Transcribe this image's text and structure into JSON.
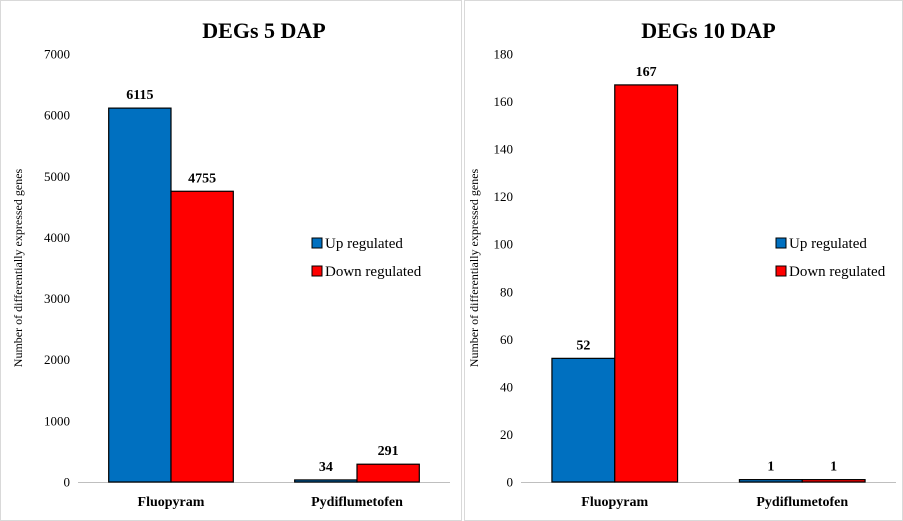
{
  "chart_data": [
    {
      "type": "bar",
      "title": "DEGs 5 DAP",
      "ylabel": "Number of differentially expressed genes",
      "xlabel": "",
      "categories": [
        "Fluopyram",
        "Pydiflumetofen"
      ],
      "ylim": [
        0,
        7000
      ],
      "yticks": [
        0,
        1000,
        2000,
        3000,
        4000,
        5000,
        6000,
        7000
      ],
      "series": [
        {
          "name": "Up regulated",
          "color": "#0070C0",
          "values": [
            6115,
            34
          ]
        },
        {
          "name": "Down regulated",
          "color": "#FF0000",
          "values": [
            4755,
            291
          ]
        }
      ],
      "data_labels": true,
      "legend": "right",
      "grid": false
    },
    {
      "type": "bar",
      "title": "DEGs 10 DAP",
      "ylabel": "Number of differentially expressed genes",
      "xlabel": "",
      "categories": [
        "Fluopyram",
        "Pydiflumetofen"
      ],
      "ylim": [
        0,
        180
      ],
      "yticks": [
        0,
        20,
        40,
        60,
        80,
        100,
        120,
        140,
        160,
        180
      ],
      "series": [
        {
          "name": "Up regulated",
          "color": "#0070C0",
          "values": [
            52,
            1
          ]
        },
        {
          "name": "Down regulated",
          "color": "#FF0000",
          "values": [
            167,
            1
          ]
        }
      ],
      "data_labels": true,
      "legend": "right",
      "grid": false
    }
  ]
}
